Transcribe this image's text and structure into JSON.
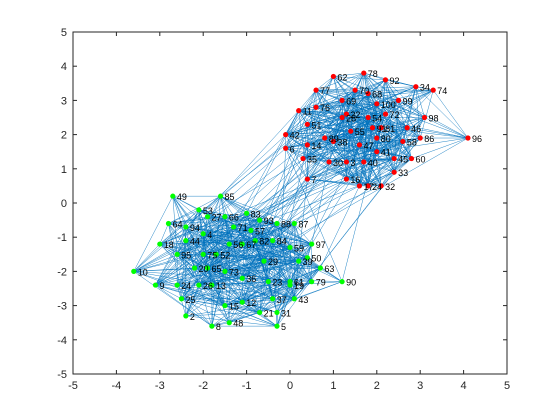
{
  "chart_data": {
    "type": "scatter",
    "title": "",
    "xlabel": "",
    "ylabel": "",
    "xlim": [
      -5,
      5
    ],
    "ylim": [
      -5,
      5
    ],
    "xticks": [
      "-5",
      "-4",
      "-3",
      "-2",
      "-1",
      "0",
      "1",
      "2",
      "3",
      "4",
      "5"
    ],
    "yticks": [
      "-5",
      "-4",
      "-3",
      "-2",
      "-1",
      "0",
      "1",
      "2",
      "3",
      "4",
      "5"
    ],
    "grid": false,
    "legend": "none",
    "colors": {
      "edge": "#0072BD",
      "green_cluster": "#00FF00",
      "red_cluster": "#FF0000",
      "axis": "#262626"
    },
    "series": [
      {
        "color": "#00FF00",
        "nodes": [
          {
            "id": "2",
            "x": -2.4,
            "y": -3.3
          },
          {
            "id": "4",
            "x": -2.0,
            "y": -0.9
          },
          {
            "id": "5",
            "x": -0.3,
            "y": -3.6
          },
          {
            "id": "8",
            "x": -1.8,
            "y": -3.6
          },
          {
            "id": "9",
            "x": -3.1,
            "y": -2.4
          },
          {
            "id": "10",
            "x": -3.6,
            "y": -2.0
          },
          {
            "id": "12",
            "x": -1.1,
            "y": -2.9
          },
          {
            "id": "13",
            "x": -1.8,
            "y": -2.4
          },
          {
            "id": "15",
            "x": -1.5,
            "y": -3.0
          },
          {
            "id": "18",
            "x": -3.0,
            "y": -1.2
          },
          {
            "id": "19",
            "x": 0.0,
            "y": -2.4
          },
          {
            "id": "20",
            "x": -2.2,
            "y": -1.9
          },
          {
            "id": "21",
            "x": -0.7,
            "y": -3.2
          },
          {
            "id": "23",
            "x": -0.5,
            "y": -2.3
          },
          {
            "id": "24",
            "x": -2.6,
            "y": -2.4
          },
          {
            "id": "25",
            "x": -2.5,
            "y": -2.8
          },
          {
            "id": "26",
            "x": -2.1,
            "y": -2.4
          },
          {
            "id": "27",
            "x": -1.9,
            "y": -0.4
          },
          {
            "id": "29",
            "x": -0.6,
            "y": -1.7
          },
          {
            "id": "31",
            "x": -0.3,
            "y": -3.2
          },
          {
            "id": "36",
            "x": -1.1,
            "y": -2.2
          },
          {
            "id": "37",
            "x": -0.4,
            "y": -2.8
          },
          {
            "id": "39",
            "x": 0.2,
            "y": -1.7
          },
          {
            "id": "43",
            "x": 0.1,
            "y": -2.8
          },
          {
            "id": "44",
            "x": -2.4,
            "y": -1.1
          },
          {
            "id": "48",
            "x": -1.4,
            "y": -3.5
          },
          {
            "id": "49",
            "x": -2.7,
            "y": 0.2
          },
          {
            "id": "50",
            "x": 0.4,
            "y": -1.6
          },
          {
            "id": "52",
            "x": -1.7,
            "y": -1.5
          },
          {
            "id": "53",
            "x": -2.1,
            "y": -0.2
          },
          {
            "id": "56",
            "x": -1.4,
            "y": -1.2
          },
          {
            "id": "57",
            "x": -0.9,
            "y": -0.8
          },
          {
            "id": "59",
            "x": 0.0,
            "y": -1.3
          },
          {
            "id": "61",
            "x": 0.0,
            "y": -2.3
          },
          {
            "id": "63",
            "x": 0.7,
            "y": -1.9
          },
          {
            "id": "64",
            "x": -2.8,
            "y": -0.6
          },
          {
            "id": "65",
            "x": -1.9,
            "y": -1.9
          },
          {
            "id": "66",
            "x": -1.5,
            "y": -0.4
          },
          {
            "id": "67",
            "x": -1.1,
            "y": -1.2
          },
          {
            "id": "71",
            "x": -1.3,
            "y": -0.7
          },
          {
            "id": "73",
            "x": -1.5,
            "y": -2.0
          },
          {
            "id": "75",
            "x": -2.0,
            "y": -1.5
          },
          {
            "id": "79",
            "x": 0.5,
            "y": -2.3
          },
          {
            "id": "82",
            "x": -0.8,
            "y": -1.1
          },
          {
            "id": "83",
            "x": -1.0,
            "y": -0.3
          },
          {
            "id": "84",
            "x": -0.4,
            "y": -1.1
          },
          {
            "id": "85",
            "x": -1.6,
            "y": 0.2
          },
          {
            "id": "87",
            "x": 0.1,
            "y": -0.6
          },
          {
            "id": "88",
            "x": -0.3,
            "y": -0.6
          },
          {
            "id": "90",
            "x": 1.2,
            "y": -2.3
          },
          {
            "id": "93",
            "x": -0.7,
            "y": -0.5
          },
          {
            "id": "94",
            "x": -2.4,
            "y": -0.7
          },
          {
            "id": "95",
            "x": -2.6,
            "y": -1.5
          },
          {
            "id": "97",
            "x": 0.5,
            "y": -1.2
          }
        ]
      },
      {
        "color": "#FF0000",
        "nodes": [
          {
            "id": "3",
            "x": 1.3,
            "y": 1.2
          },
          {
            "id": "6",
            "x": -0.1,
            "y": 1.6
          },
          {
            "id": "7",
            "x": 0.4,
            "y": 0.7
          },
          {
            "id": "11",
            "x": 0.2,
            "y": 2.7
          },
          {
            "id": "14",
            "x": 0.4,
            "y": 1.7
          },
          {
            "id": "16",
            "x": 1.3,
            "y": 0.7
          },
          {
            "id": "17",
            "x": 1.6,
            "y": 0.5
          },
          {
            "id": "22",
            "x": 1.3,
            "y": 2.6
          },
          {
            "id": "24",
            "x": 1.8,
            "y": 0.5
          },
          {
            "id": "28",
            "x": 1.2,
            "y": 2.5
          },
          {
            "id": "30",
            "x": 0.9,
            "y": 1.2
          },
          {
            "id": "32",
            "x": 2.1,
            "y": 0.5
          },
          {
            "id": "33",
            "x": 2.4,
            "y": 0.9
          },
          {
            "id": "34",
            "x": 2.9,
            "y": 3.4
          },
          {
            "id": "35",
            "x": 0.3,
            "y": 1.3
          },
          {
            "id": "38",
            "x": 1.0,
            "y": 1.8
          },
          {
            "id": "40",
            "x": 1.7,
            "y": 1.2
          },
          {
            "id": "41",
            "x": 2.0,
            "y": 1.5
          },
          {
            "id": "42",
            "x": -0.1,
            "y": 2.0
          },
          {
            "id": "45",
            "x": 2.4,
            "y": 1.3
          },
          {
            "id": "46",
            "x": 2.7,
            "y": 2.2
          },
          {
            "id": "47",
            "x": 1.6,
            "y": 1.7
          },
          {
            "id": "51",
            "x": 0.4,
            "y": 2.3
          },
          {
            "id": "54",
            "x": 1.8,
            "y": 2.5
          },
          {
            "id": "55",
            "x": 1.4,
            "y": 2.1
          },
          {
            "id": "58",
            "x": 2.6,
            "y": 1.8
          },
          {
            "id": "60",
            "x": 2.8,
            "y": 1.3
          },
          {
            "id": "62",
            "x": 1.0,
            "y": 3.7
          },
          {
            "id": "68",
            "x": 1.8,
            "y": 3.2
          },
          {
            "id": "69",
            "x": 1.2,
            "y": 3.0
          },
          {
            "id": "70",
            "x": 1.5,
            "y": 3.3
          },
          {
            "id": "72",
            "x": 2.2,
            "y": 2.6
          },
          {
            "id": "74",
            "x": 3.3,
            "y": 3.3
          },
          {
            "id": "76",
            "x": 0.6,
            "y": 2.8
          },
          {
            "id": "77",
            "x": 0.6,
            "y": 3.3
          },
          {
            "id": "78",
            "x": 1.7,
            "y": 3.8
          },
          {
            "id": "80",
            "x": 2.0,
            "y": 1.9
          },
          {
            "id": "81",
            "x": 2.1,
            "y": 2.2
          },
          {
            "id": "86",
            "x": 3.0,
            "y": 1.9
          },
          {
            "id": "89",
            "x": 0.8,
            "y": 1.9
          },
          {
            "id": "91",
            "x": 1.9,
            "y": 2.2
          },
          {
            "id": "92",
            "x": 2.2,
            "y": 3.6
          },
          {
            "id": "96",
            "x": 4.1,
            "y": 1.9
          },
          {
            "id": "98",
            "x": 3.1,
            "y": 2.5
          },
          {
            "id": "99",
            "x": 2.5,
            "y": 3.0
          },
          {
            "id": "100",
            "x": 2.0,
            "y": 2.9
          }
        ]
      }
    ]
  }
}
